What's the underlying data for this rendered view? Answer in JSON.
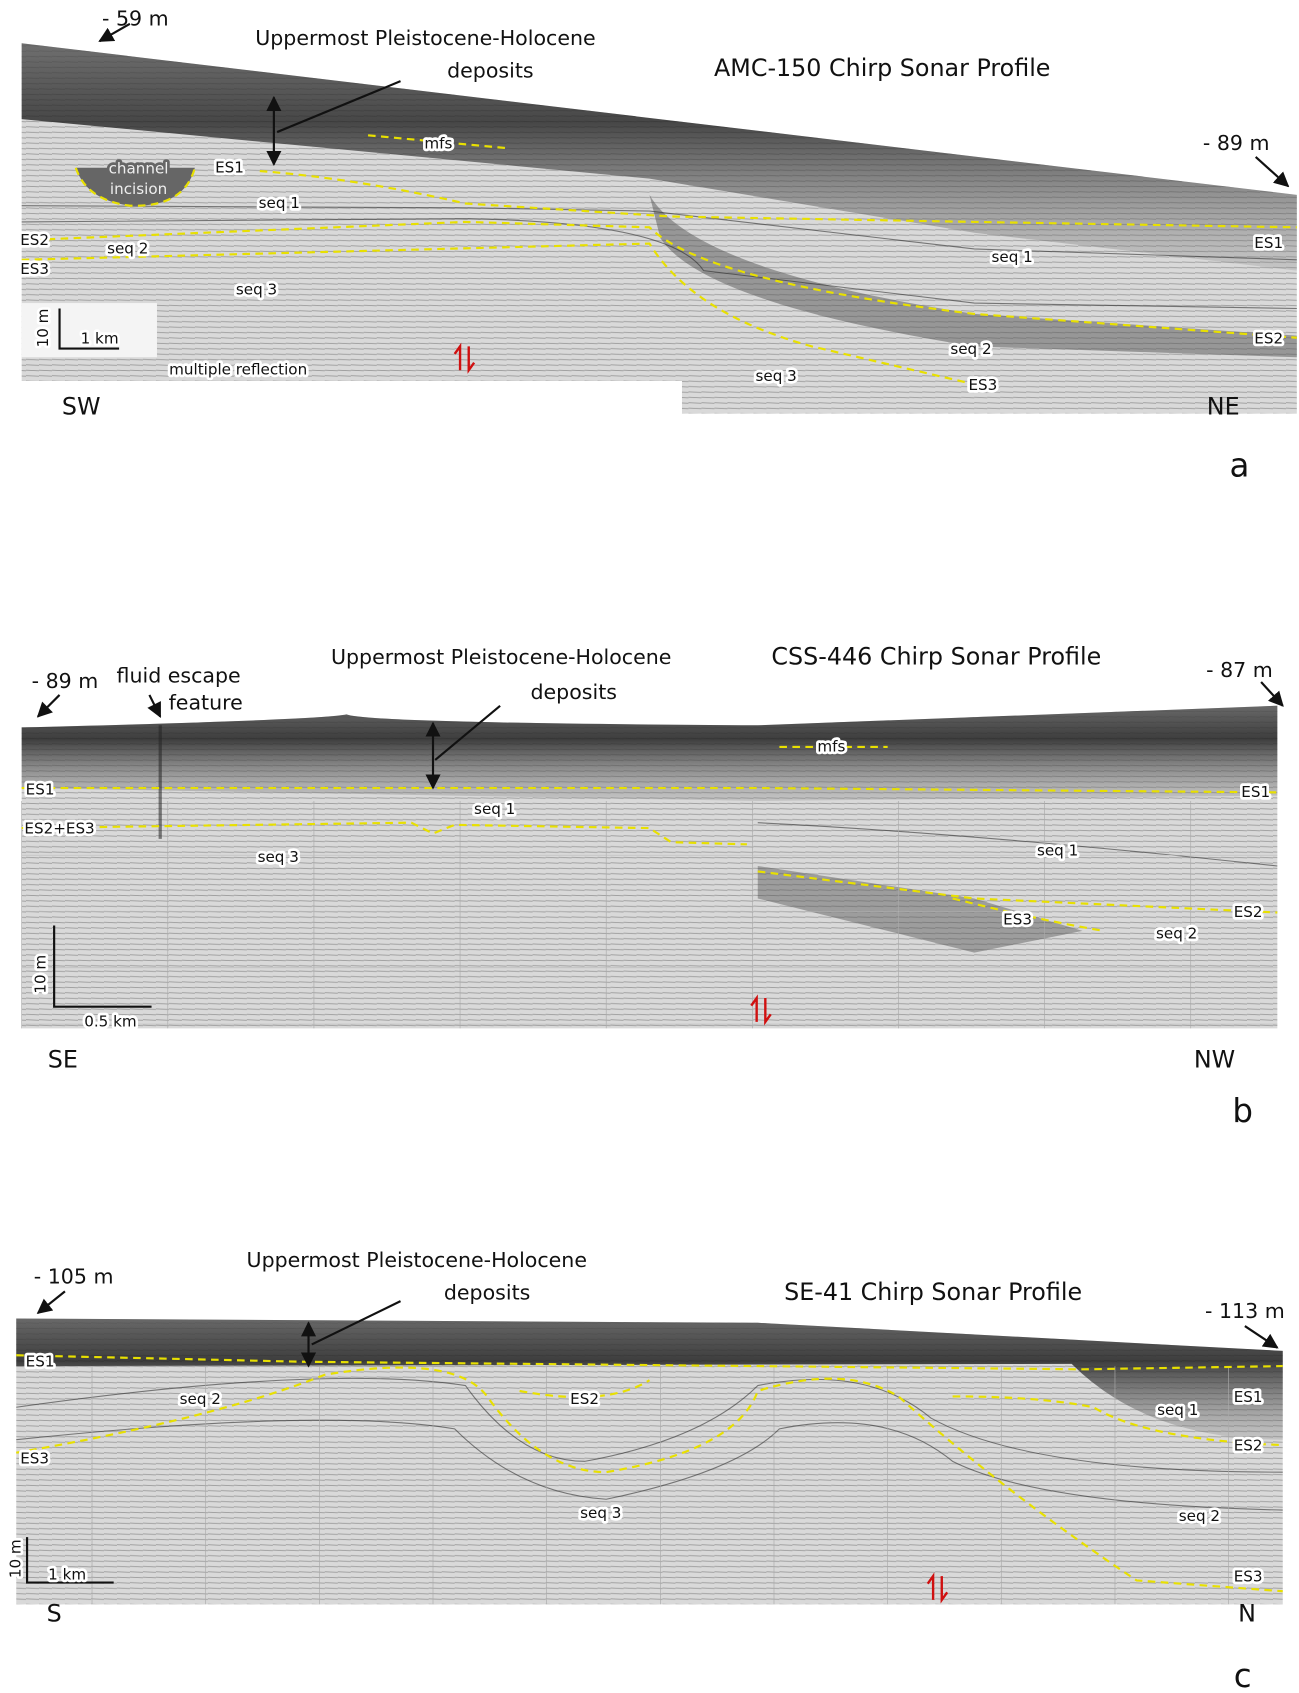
{
  "panels": [
    {
      "depth_left": "- 59 m",
      "depth_right": "- 89 m",
      "deposits_label": [
        "Uppermost Pleistocene-Holocene",
        "deposits"
      ],
      "title": "AMC-150 Chirp Sonar Profile",
      "scale_vertical": "10 m",
      "scale_horizontal": "1 km",
      "direction_left": "SW",
      "direction_right": "NE",
      "letter": "a",
      "labels": [
        "mfs",
        "channel",
        "incision",
        "ES1",
        "seq 1",
        "ES2",
        "seq 2",
        "ES3",
        "seq 3",
        "multiple reflection",
        "ES1",
        "seq 1",
        "ES2",
        "seq 2",
        "seq 3",
        "ES3"
      ]
    },
    {
      "depth_left": "- 89 m",
      "depth_right": "- 87 m",
      "feature_label": [
        "fluid escape",
        "feature"
      ],
      "deposits_label": [
        "Uppermost Pleistocene-Holocene",
        "deposits"
      ],
      "title": "CSS-446 Chirp Sonar Profile",
      "scale_vertical": "10 m",
      "scale_horizontal": "0.5 km",
      "direction_left": "SE",
      "direction_right": "NW",
      "letter": "b",
      "labels": [
        "mfs",
        "ES1",
        "seq 1",
        "ES2+ES3",
        "seq 3",
        "ES1",
        "seq 1",
        "ES2",
        "ES3",
        "seq 2"
      ]
    },
    {
      "depth_left": "- 105 m",
      "depth_right": "- 113 m",
      "deposits_label": [
        "Uppermost Pleistocene-Holocene",
        "deposits"
      ],
      "title": "SE-41 Chirp Sonar Profile",
      "scale_vertical": "10 m",
      "scale_horizontal": "1 km",
      "direction_left": "S",
      "direction_right": "N",
      "letter": "c",
      "labels": [
        "ES1",
        "seq 2",
        "ES3",
        "ES2",
        "seq 3",
        "seq 1",
        "ES1",
        "ES2",
        "seq 2",
        "ES3"
      ]
    }
  ]
}
